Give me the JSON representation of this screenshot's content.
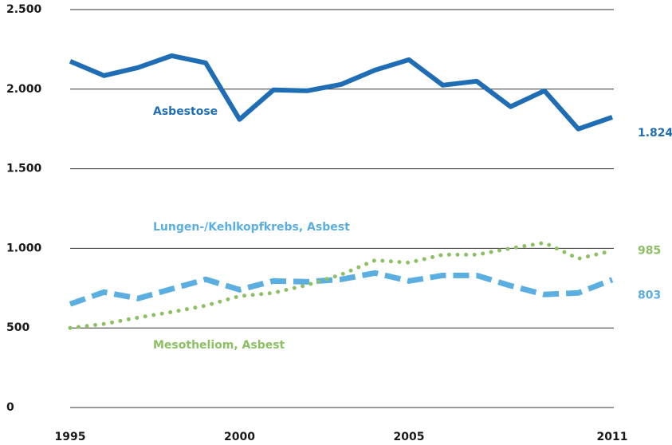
{
  "chart_data": {
    "type": "line",
    "x": [
      1995,
      1996,
      1997,
      1998,
      1999,
      2000,
      2001,
      2002,
      2003,
      2004,
      2005,
      2006,
      2007,
      2008,
      2009,
      2010,
      2011
    ],
    "xlim": [
      1995,
      2011
    ],
    "xticks": [
      1995,
      2000,
      2005,
      2011
    ],
    "ylim": [
      0,
      2500
    ],
    "yticks": [
      0,
      500,
      {
        "value": 1000,
        "label": "1.000"
      },
      {
        "value": 1500,
        "label": "1.500"
      },
      {
        "value": 2000,
        "label": "2.000"
      },
      {
        "value": 2500,
        "label": "2.500"
      }
    ],
    "grid": true,
    "series": [
      {
        "name": "Asbestose",
        "color": "#1f6db5",
        "style": "solid",
        "values": [
          2175,
          2085,
          2135,
          2210,
          2165,
          1810,
          1995,
          1990,
          2030,
          2120,
          2185,
          2025,
          2050,
          1890,
          1990,
          1750,
          1824
        ],
        "value_labels": [
          null,
          null,
          null,
          null,
          null,
          null,
          null,
          null,
          null,
          null,
          null,
          null,
          null,
          null,
          null,
          null,
          "1.824"
        ]
      },
      {
        "name": "Lungen-/Kehlkopfkrebs, Asbest",
        "color": "#5aaee0",
        "style": "dashed",
        "values": [
          650,
          725,
          685,
          745,
          805,
          740,
          795,
          790,
          805,
          845,
          795,
          830,
          830,
          765,
          710,
          720,
          803
        ],
        "value_labels": [
          null,
          null,
          null,
          null,
          null,
          null,
          null,
          null,
          null,
          null,
          null,
          null,
          null,
          null,
          null,
          null,
          "803"
        ]
      },
      {
        "name": "Mesotheliom, Asbest",
        "color": "#8cc063",
        "style": "dotted",
        "values": [
          500,
          525,
          565,
          600,
          640,
          700,
          720,
          770,
          835,
          925,
          910,
          960,
          960,
          1000,
          1035,
          935,
          985
        ],
        "value_labels": [
          null,
          null,
          null,
          null,
          null,
          null,
          null,
          null,
          null,
          null,
          null,
          null,
          null,
          null,
          null,
          null,
          "985"
        ]
      }
    ]
  }
}
